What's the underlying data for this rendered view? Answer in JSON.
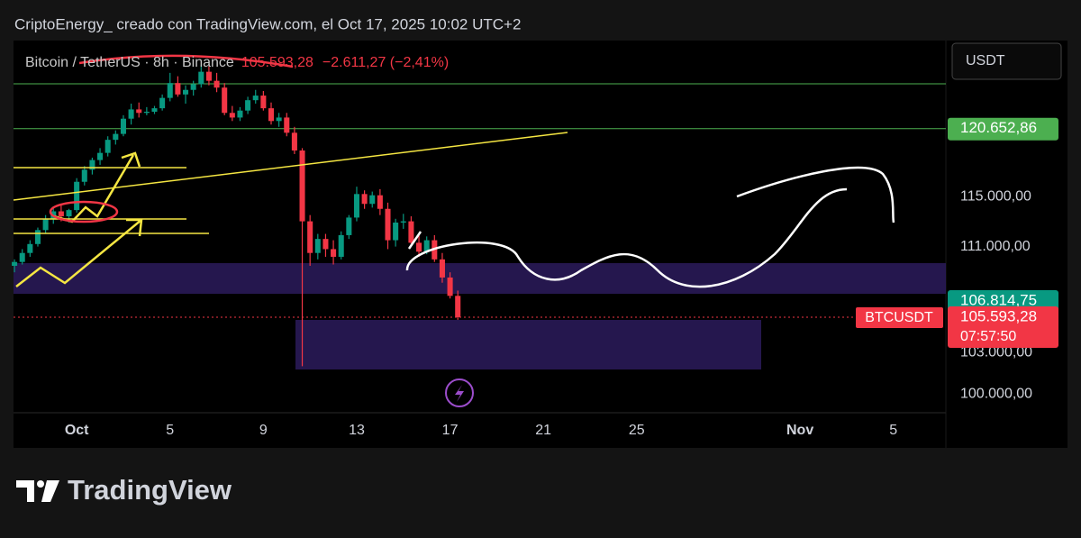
{
  "header": {
    "credit": "CriptoEnergy_ creado con TradingView.com, el Oct 17, 2025 10:02 UTC+2",
    "currency_button": "USDT"
  },
  "footer": {
    "brand": "TradingView"
  },
  "chart_data": {
    "type": "candlestick",
    "symbol": "Bitcoin / TetherUS · 8h · Binance",
    "change": "−2.611,27 (−2,41%)",
    "ticker": "BTCUSDT",
    "countdown": "07:57:50",
    "last_price": {
      "value": 105593.28,
      "label": "105.593,28"
    },
    "price_lines": [
      {
        "value": 120652.86,
        "label": "120.652,86",
        "color": "#4caf50"
      }
    ],
    "zone_label": {
      "value": 106814.75,
      "label": "106.814,75"
    },
    "log_scale": true,
    "up_color": "#089981",
    "down_color": "#f23645",
    "ylim": [
      98700,
      128400
    ],
    "yticks": [
      {
        "value": 115000,
        "label": "115.000,00"
      },
      {
        "value": 111000,
        "label": "111.000,00"
      },
      {
        "value": 103000,
        "label": "103.000,00"
      },
      {
        "value": 100000,
        "label": "100.000,00"
      }
    ],
    "xlim": [
      "2025-09-28T07:00",
      "2025-11-07T06:00"
    ],
    "xticks": [
      {
        "value": "2025-10-01",
        "label": "Oct"
      },
      {
        "value": "2025-10-05",
        "label": "5"
      },
      {
        "value": "2025-10-09",
        "label": "9"
      },
      {
        "value": "2025-10-13",
        "label": "13"
      },
      {
        "value": "2025-10-17",
        "label": "17"
      },
      {
        "value": "2025-10-21",
        "label": "21"
      },
      {
        "value": "2025-10-25",
        "label": "25"
      },
      {
        "value": "2025-11-01",
        "label": "Nov"
      },
      {
        "value": "2025-11-05",
        "label": "5"
      }
    ],
    "x": [
      "2025-09-28T08:00",
      "2025-09-28T16:00",
      "2025-09-29T00:00",
      "2025-09-29T08:00",
      "2025-09-29T16:00",
      "2025-09-30T00:00",
      "2025-09-30T08:00",
      "2025-09-30T16:00",
      "2025-10-01T00:00",
      "2025-10-01T08:00",
      "2025-10-01T16:00",
      "2025-10-02T00:00",
      "2025-10-02T08:00",
      "2025-10-02T16:00",
      "2025-10-03T00:00",
      "2025-10-03T08:00",
      "2025-10-03T16:00",
      "2025-10-04T00:00",
      "2025-10-04T08:00",
      "2025-10-04T16:00",
      "2025-10-05T00:00",
      "2025-10-05T08:00",
      "2025-10-05T16:00",
      "2025-10-06T00:00",
      "2025-10-06T08:00",
      "2025-10-06T16:00",
      "2025-10-07T00:00",
      "2025-10-07T08:00",
      "2025-10-07T16:00",
      "2025-10-08T00:00",
      "2025-10-08T08:00",
      "2025-10-08T16:00",
      "2025-10-09T00:00",
      "2025-10-09T08:00",
      "2025-10-09T16:00",
      "2025-10-10T00:00",
      "2025-10-10T08:00",
      "2025-10-10T16:00",
      "2025-10-11T00:00",
      "2025-10-11T08:00",
      "2025-10-11T16:00",
      "2025-10-12T00:00",
      "2025-10-12T08:00",
      "2025-10-12T16:00",
      "2025-10-13T00:00",
      "2025-10-13T08:00",
      "2025-10-13T16:00",
      "2025-10-14T00:00",
      "2025-10-14T08:00",
      "2025-10-14T16:00",
      "2025-10-15T00:00",
      "2025-10-15T08:00",
      "2025-10-15T16:00",
      "2025-10-16T00:00",
      "2025-10-16T08:00",
      "2025-10-16T16:00",
      "2025-10-17T00:00",
      "2025-10-17T08:00"
    ],
    "open": [
      109500,
      109800,
      110500,
      111200,
      112300,
      113200,
      113800,
      113400,
      113900,
      116200,
      117200,
      118000,
      118600,
      119700,
      120200,
      121500,
      122300,
      122000,
      122100,
      122400,
      123300,
      124600,
      123600,
      124000,
      124500,
      125600,
      124800,
      124200,
      122000,
      121600,
      122200,
      123100,
      123500,
      122400,
      121300,
      121600,
      120300,
      118800,
      113000,
      110500,
      111600,
      110800,
      110200,
      111900,
      113300,
      115200,
      114400,
      115100,
      114000,
      111500,
      112900,
      113000,
      111300,
      110600,
      111500,
      110000,
      108600,
      107200
    ],
    "high": [
      110000,
      110800,
      111500,
      112500,
      113500,
      114200,
      114300,
      114000,
      116500,
      117500,
      118200,
      119000,
      120000,
      120500,
      121800,
      122800,
      122900,
      122500,
      122600,
      123600,
      125500,
      125200,
      124400,
      124800,
      126200,
      126100,
      125500,
      124600,
      122600,
      122500,
      123400,
      124000,
      123900,
      122900,
      122000,
      122000,
      120800,
      119000,
      113500,
      112000,
      112000,
      111500,
      112200,
      113500,
      115800,
      115500,
      115400,
      115600,
      114500,
      113200,
      113600,
      113400,
      112000,
      111800,
      111900,
      110500,
      109000,
      107600
    ],
    "low": [
      109000,
      109600,
      110200,
      111000,
      112000,
      112800,
      113000,
      112900,
      113700,
      115900,
      116800,
      117600,
      118300,
      119300,
      120000,
      121000,
      121600,
      121800,
      121900,
      122200,
      123000,
      123400,
      122800,
      123500,
      124200,
      124400,
      123800,
      121800,
      121300,
      121300,
      121900,
      122800,
      122200,
      121000,
      120800,
      120000,
      118500,
      102000,
      109500,
      110000,
      110200,
      109600,
      110000,
      111600,
      113000,
      114000,
      114100,
      113500,
      110800,
      111000,
      112400,
      111000,
      110200,
      110400,
      109800,
      108200,
      107000,
      105400
    ],
    "close": [
      109800,
      110500,
      111200,
      112300,
      113200,
      113800,
      113400,
      113900,
      116200,
      117200,
      118000,
      118600,
      119700,
      120200,
      121500,
      122300,
      122000,
      122100,
      122400,
      123300,
      124600,
      123600,
      124000,
      124500,
      125600,
      124800,
      124200,
      122000,
      121600,
      122200,
      123100,
      123500,
      122400,
      121300,
      121600,
      120300,
      118800,
      113000,
      110500,
      111600,
      110800,
      110200,
      111900,
      113300,
      115200,
      114400,
      115100,
      114000,
      111500,
      112900,
      113000,
      111300,
      110600,
      111500,
      110000,
      108600,
      107200,
      105593.28
    ]
  }
}
